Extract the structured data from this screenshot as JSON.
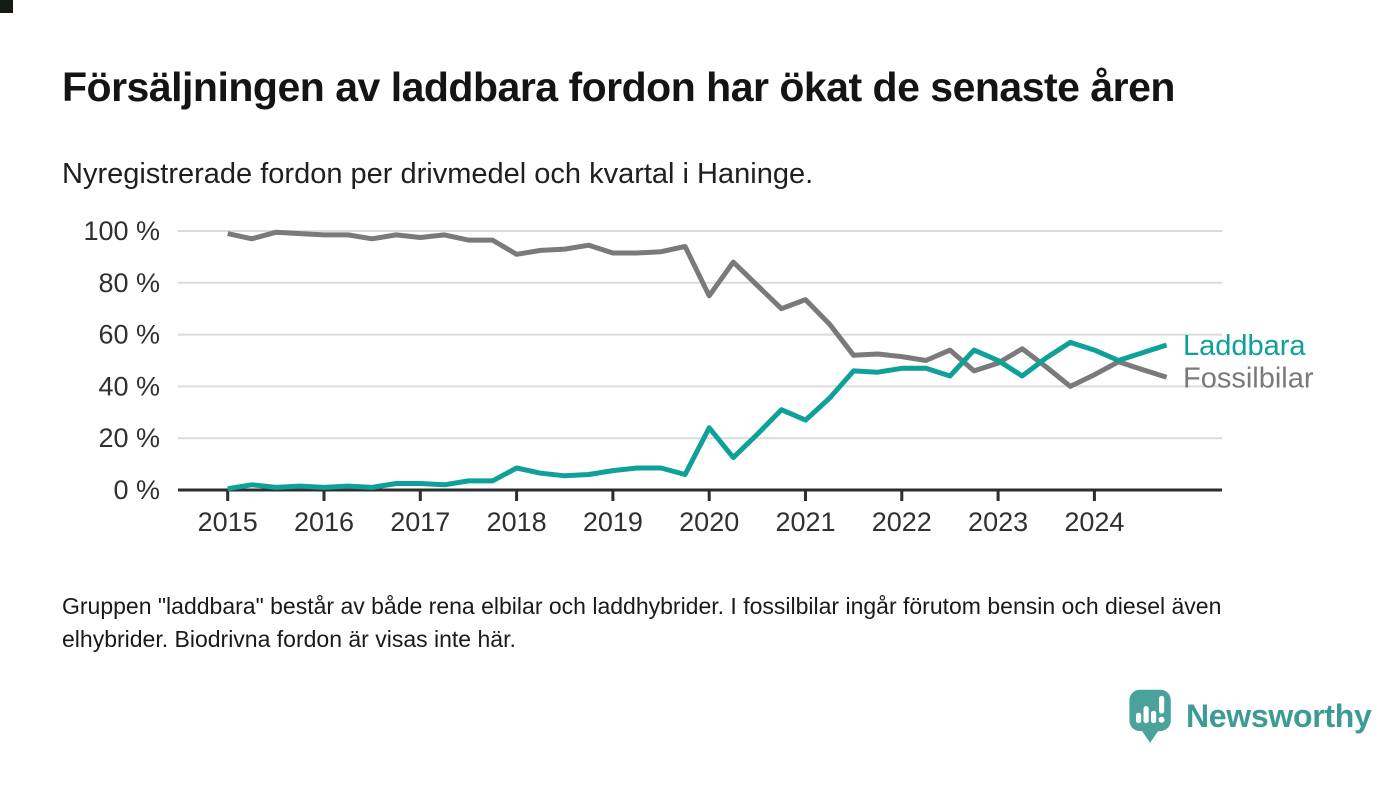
{
  "title": "Försäljningen av laddbara fordon har ökat de senaste åren",
  "subtitle": "Nyregistrerade fordon per drivmedel och kvartal i Haninge.",
  "footnote_lines": [
    "Gruppen \"laddbara\" består av både rena elbilar och laddhybrider. I fossilbilar ingår förutom bensin och diesel även",
    "elhybrider. Biodrivna fordon är visas inte här."
  ],
  "brand": {
    "name": "Newsworthy",
    "icon": "speech-bubble-bar-chart-icon",
    "text_color": "#3d9b95",
    "icon_color": "#4aa29b"
  },
  "chart_data": {
    "type": "line",
    "title": "Försäljningen av laddbara fordon har ökat de senaste åren",
    "subtitle": "Nyregistrerade fordon per drivmedel och kvartal i Haninge.",
    "x_unit": "quarter",
    "x_start": "2015 Q1",
    "x_end": "2024 Q4",
    "points_per_year": 4,
    "x_tick_labels": [
      "2015",
      "2016",
      "2017",
      "2018",
      "2019",
      "2020",
      "2021",
      "2022",
      "2023",
      "2024"
    ],
    "y_tick_labels": [
      "0 %",
      "20 %",
      "40 %",
      "60 %",
      "80 %",
      "100 %"
    ],
    "y_tick_values": [
      0,
      20,
      40,
      60,
      80,
      100
    ],
    "ylim": [
      0,
      100
    ],
    "grid": "horizontal",
    "legend": "line-end-labels",
    "series": [
      {
        "name": "Laddbara",
        "color": "#0fa099",
        "values": [
          0.5,
          2,
          1,
          1.5,
          1,
          1.5,
          1,
          2.5,
          2.5,
          2,
          3.5,
          3.5,
          8.5,
          6.5,
          5.5,
          6,
          7.5,
          8.5,
          8.5,
          6,
          24,
          12.5,
          21.5,
          31,
          27,
          35.5,
          46,
          45.5,
          47,
          47,
          44,
          54,
          50,
          44,
          51,
          57,
          54,
          50,
          53,
          56
        ]
      },
      {
        "name": "Fossilbilar",
        "color": "#7a7a7a",
        "values": [
          99,
          97,
          99.5,
          99,
          98.5,
          98.5,
          97,
          98.5,
          97.5,
          98.5,
          96.5,
          96.5,
          91,
          92.5,
          93,
          94.5,
          91.5,
          91.5,
          92,
          94,
          75,
          88,
          79,
          70,
          73.5,
          64,
          52,
          52.5,
          51.5,
          50,
          54,
          46,
          49,
          54.5,
          47.5,
          40,
          44.5,
          49.5,
          46.5,
          43.5
        ]
      }
    ]
  }
}
